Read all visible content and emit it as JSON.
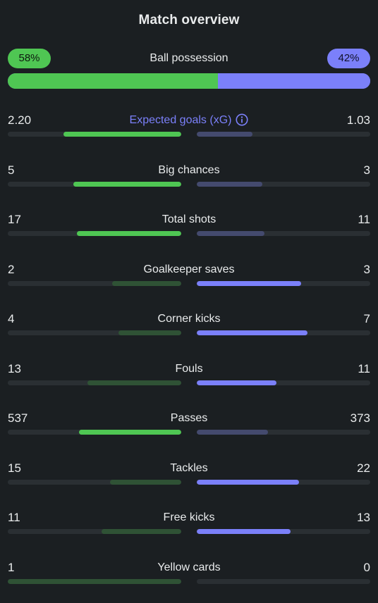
{
  "header": {
    "title": "Match overview"
  },
  "possession": {
    "label": "Ball possession",
    "home_label": "58%",
    "away_label": "42%",
    "home_fraction": 0.58
  },
  "colors": {
    "home": "#4fc653",
    "home_muted": "#2f5235",
    "away": "#7b80fa",
    "away_muted": "#444a6e",
    "track": "#2a2f33"
  },
  "stats": [
    {
      "label": "Expected goals (xG)",
      "home": "2.20",
      "away": "1.03",
      "home_fill": 0.68,
      "away_fill": 0.32,
      "leader": "home",
      "accent": true,
      "info": true
    },
    {
      "label": "Big chances",
      "home": "5",
      "away": "3",
      "home_fill": 0.62,
      "away_fill": 0.38,
      "leader": "home"
    },
    {
      "label": "Total shots",
      "home": "17",
      "away": "11",
      "home_fill": 0.6,
      "away_fill": 0.39,
      "leader": "home"
    },
    {
      "label": "Goalkeeper saves",
      "home": "2",
      "away": "3",
      "home_fill": 0.4,
      "away_fill": 0.6,
      "leader": "away"
    },
    {
      "label": "Corner kicks",
      "home": "4",
      "away": "7",
      "home_fill": 0.36,
      "away_fill": 0.64,
      "leader": "away"
    },
    {
      "label": "Fouls",
      "home": "13",
      "away": "11",
      "home_fill": 0.54,
      "away_fill": 0.46,
      "leader": "away"
    },
    {
      "label": "Passes",
      "home": "537",
      "away": "373",
      "home_fill": 0.59,
      "away_fill": 0.41,
      "leader": "home"
    },
    {
      "label": "Tackles",
      "home": "15",
      "away": "22",
      "home_fill": 0.41,
      "away_fill": 0.59,
      "leader": "away"
    },
    {
      "label": "Free kicks",
      "home": "11",
      "away": "13",
      "home_fill": 0.46,
      "away_fill": 0.54,
      "leader": "away"
    },
    {
      "label": "Yellow cards",
      "home": "1",
      "away": "0",
      "home_fill": 1.0,
      "away_fill": 0.0,
      "leader": "home_muted"
    }
  ]
}
